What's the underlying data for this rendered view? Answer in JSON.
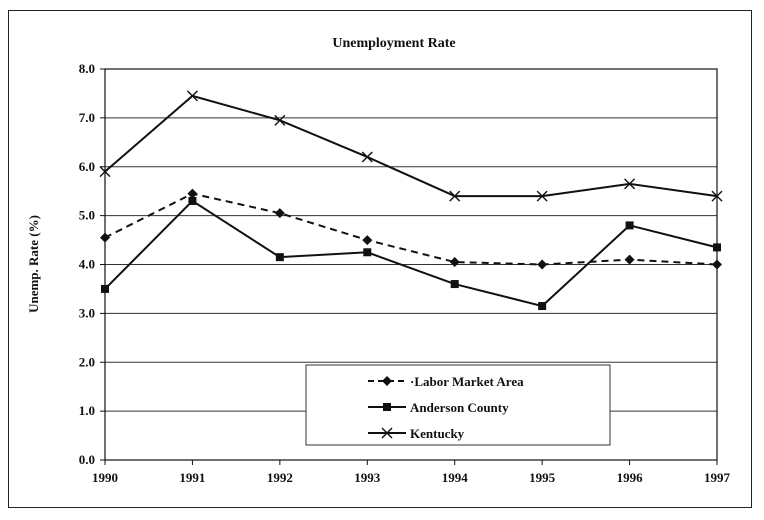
{
  "chart_data": {
    "type": "line",
    "title": "Unemployment Rate",
    "xlabel": "",
    "ylabel": "Unemp. Rate (%)",
    "x": [
      "1990",
      "1991",
      "1992",
      "1993",
      "1994",
      "1995",
      "1996",
      "1997"
    ],
    "ylim": [
      0,
      8
    ],
    "yticks": [
      "0.0",
      "1.0",
      "2.0",
      "3.0",
      "4.0",
      "5.0",
      "6.0",
      "7.0",
      "8.0"
    ],
    "grid": true,
    "legend_position": "bottom-center",
    "series": [
      {
        "name": "Labor Market Area",
        "marker": "diamond",
        "dash": "dashed",
        "color": "#111111",
        "values": [
          4.55,
          5.45,
          5.05,
          4.5,
          4.05,
          4.0,
          4.1,
          4.0
        ]
      },
      {
        "name": "Anderson County",
        "marker": "square",
        "dash": "solid",
        "color": "#111111",
        "values": [
          3.5,
          5.3,
          4.15,
          4.25,
          3.6,
          3.15,
          4.8,
          4.35
        ]
      },
      {
        "name": "Kentucky",
        "marker": "x",
        "dash": "solid",
        "color": "#111111",
        "values": [
          5.9,
          7.45,
          6.95,
          6.2,
          5.4,
          5.4,
          5.65,
          5.4
        ]
      }
    ]
  }
}
